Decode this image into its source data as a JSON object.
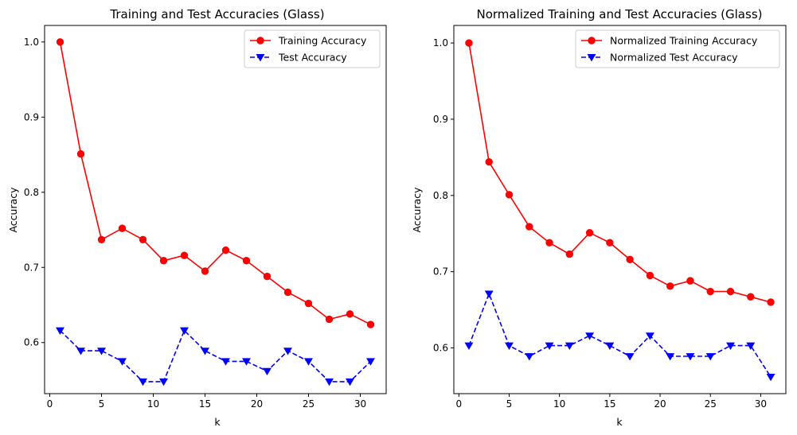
{
  "chart_data": [
    {
      "type": "line",
      "title": "Training and Test Accuracies (Glass)",
      "xlabel": "k",
      "ylabel": "Accuracy",
      "xlim": [
        -0.5,
        32.5
      ],
      "ylim": [
        0.532,
        1.022
      ],
      "xticks": [
        0,
        5,
        10,
        15,
        20,
        25,
        30
      ],
      "yticks": [
        0.6,
        0.7,
        0.8,
        0.9,
        1.0
      ],
      "ytick_labels": [
        "0.6",
        "0.7",
        "0.8",
        "0.9",
        "1.0"
      ],
      "grid": false,
      "legend_position": "top-right",
      "x": [
        1,
        3,
        5,
        7,
        9,
        11,
        13,
        15,
        17,
        19,
        21,
        23,
        25,
        27,
        29,
        31
      ],
      "series": [
        {
          "name": "Training Accuracy",
          "color": "#ff0000",
          "linestyle": "solid",
          "marker": "circle",
          "values": [
            1.0,
            0.851,
            0.737,
            0.752,
            0.737,
            0.709,
            0.716,
            0.695,
            0.723,
            0.709,
            0.688,
            0.667,
            0.652,
            0.631,
            0.638,
            0.624
          ]
        },
        {
          "name": "Test Accuracy",
          "color": "#0000ff",
          "linestyle": "dashed",
          "marker": "triangle-down",
          "values": [
            0.616,
            0.589,
            0.589,
            0.575,
            0.548,
            0.548,
            0.616,
            0.589,
            0.575,
            0.575,
            0.562,
            0.589,
            0.575,
            0.548,
            0.548,
            0.575
          ]
        }
      ]
    },
    {
      "type": "line",
      "title": "Normalized Training and Test Accuracies (Glass)",
      "xlabel": "k",
      "ylabel": "Accuracy",
      "xlim": [
        -0.5,
        32.5
      ],
      "ylim": [
        0.54,
        1.023
      ],
      "xticks": [
        0,
        5,
        10,
        15,
        20,
        25,
        30
      ],
      "yticks": [
        0.6,
        0.7,
        0.8,
        0.9,
        1.0
      ],
      "ytick_labels": [
        "0.6",
        "0.7",
        "0.8",
        "0.9",
        "1.0"
      ],
      "grid": false,
      "legend_position": "top-right",
      "x": [
        1,
        3,
        5,
        7,
        9,
        11,
        13,
        15,
        17,
        19,
        21,
        23,
        25,
        27,
        29,
        31
      ],
      "series": [
        {
          "name": "Normalized Training Accuracy",
          "color": "#ff0000",
          "linestyle": "solid",
          "marker": "circle",
          "values": [
            1.0,
            0.844,
            0.801,
            0.759,
            0.738,
            0.723,
            0.751,
            0.738,
            0.716,
            0.695,
            0.681,
            0.688,
            0.674,
            0.674,
            0.667,
            0.66
          ]
        },
        {
          "name": "Normalized Test Accuracy",
          "color": "#0000ff",
          "linestyle": "dashed",
          "marker": "triangle-down",
          "values": [
            0.603,
            0.671,
            0.603,
            0.589,
            0.603,
            0.603,
            0.616,
            0.603,
            0.589,
            0.616,
            0.589,
            0.589,
            0.589,
            0.603,
            0.603,
            0.562
          ]
        }
      ]
    }
  ]
}
